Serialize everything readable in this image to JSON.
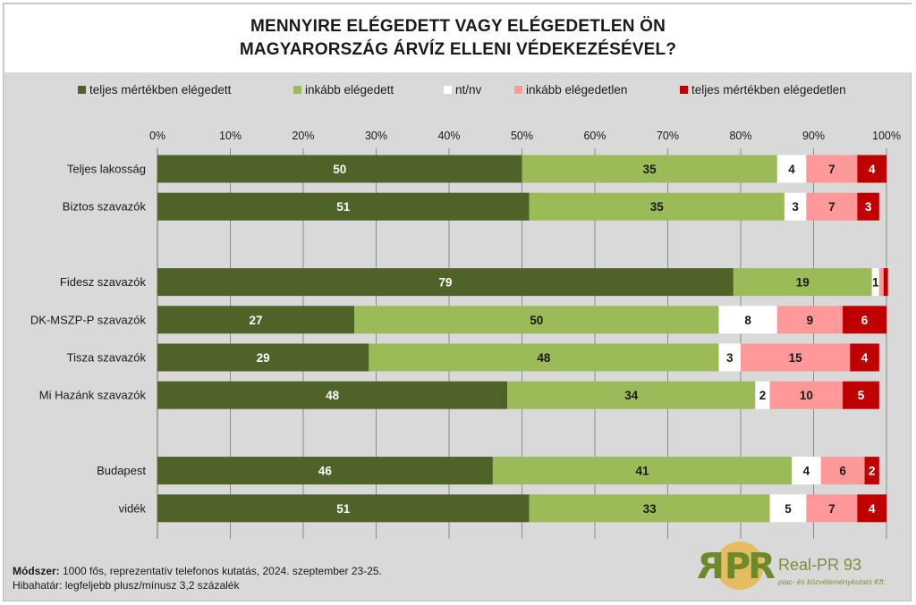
{
  "title_lines": [
    "MENNYIRE ELÉGEDETT VAGY ELÉGEDETLEN ÖN",
    "MAGYARORSZÁG ÁRVÍZ ELLENI VÉDEKEZÉSÉVEL?"
  ],
  "colors": {
    "frame": "#d9d9d9",
    "gridline": "#8c8c8c"
  },
  "footer": {
    "method_label": "Módszer:",
    "method_text": " 1000 fős, reprezentatív telefonos kutatás, 2024. szeptember 23-25.",
    "error_text": "Hibahatár: legfeljebb plusz/mínusz 3,2 százalék"
  },
  "logo": {
    "mark": "RPR",
    "name": "Real-PR 93",
    "subtitle": "piac- és közvéleménykutató Kft."
  },
  "chart_data": {
    "type": "bar",
    "orientation": "horizontal",
    "stacked": true,
    "xlim": [
      0,
      100
    ],
    "x_ticks": [
      "0%",
      "10%",
      "20%",
      "30%",
      "40%",
      "50%",
      "60%",
      "70%",
      "80%",
      "90%",
      "100%"
    ],
    "grid": true,
    "legend_position": "top",
    "categories": [
      "Teljes lakosság",
      "Biztos szavazók",
      "",
      "Fidesz szavazók",
      "DK-MSZP-P szavazók",
      "Tisza szavazók",
      "Mi Hazánk szavazók",
      "",
      "Budapest",
      "vidék"
    ],
    "series": [
      {
        "name": "teljes mértékben elégedett",
        "color": "#4f6228",
        "label_color": "#ffffff",
        "values": [
          50,
          51,
          null,
          79,
          27,
          29,
          48,
          null,
          46,
          51
        ]
      },
      {
        "name": "inkább elégedett",
        "color": "#9bbb59",
        "label_color": "#1a1a1a",
        "values": [
          35,
          35,
          null,
          19,
          50,
          48,
          34,
          null,
          41,
          33
        ]
      },
      {
        "name": "nt/nv",
        "color": "#ffffff",
        "label_color": "#1a1a1a",
        "values": [
          4,
          3,
          null,
          1,
          8,
          3,
          2,
          null,
          4,
          5
        ]
      },
      {
        "name": "inkább elégedetlen",
        "color": "#ff9999",
        "label_color": "#1a1a1a",
        "values": [
          7,
          7,
          null,
          0.6,
          9,
          15,
          10,
          null,
          6,
          7
        ]
      },
      {
        "name": "teljes mértékben elégedetlen",
        "color": "#c00000",
        "label_color": "#ffffff",
        "values": [
          4,
          3,
          null,
          0.6,
          6,
          4,
          5,
          null,
          2,
          4
        ]
      }
    ],
    "value_labels": [
      [
        "50",
        "35",
        "4",
        "7",
        "4"
      ],
      [
        "51",
        "35",
        "3",
        "7",
        "3"
      ],
      null,
      [
        "79",
        "19",
        "1",
        "",
        ""
      ],
      [
        "27",
        "50",
        "8",
        "9",
        "6"
      ],
      [
        "29",
        "48",
        "3",
        "15",
        "4"
      ],
      [
        "48",
        "34",
        "2",
        "10",
        "5"
      ],
      null,
      [
        "46",
        "41",
        "4",
        "6",
        "2"
      ],
      [
        "51",
        "33",
        "5",
        "7",
        "4"
      ]
    ]
  }
}
